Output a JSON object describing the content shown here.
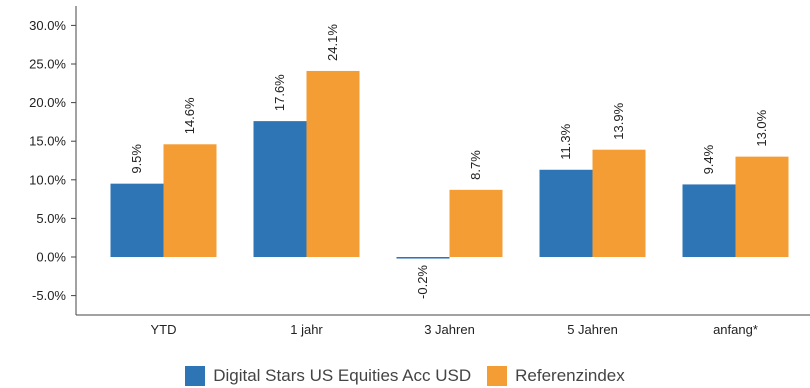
{
  "chart_data": {
    "type": "bar",
    "categories": [
      "YTD",
      "1 jahr",
      "3 Jahren",
      "5 Jahren",
      "anfang*"
    ],
    "series": [
      {
        "name": "Digital Stars US Equities Acc USD",
        "values": [
          9.5,
          17.6,
          -0.2,
          11.3,
          9.4
        ],
        "labels": [
          "9.5%",
          "17.6%",
          "-0.2%",
          "11.3%",
          "9.4%"
        ],
        "color": "#2e75b6"
      },
      {
        "name": "Referenzindex",
        "values": [
          14.6,
          24.1,
          8.7,
          13.9,
          13.0
        ],
        "labels": [
          "14.6%",
          "24.1%",
          "8.7%",
          "13.9%",
          "13.0%"
        ],
        "color": "#f59d35"
      }
    ],
    "yticks": [
      "30.0%",
      "25.0%",
      "20.0%",
      "15.0%",
      "10.0%",
      "5.0%",
      "0.0%",
      "-5.0%"
    ],
    "ylim": [
      -7.5,
      32
    ],
    "title": "",
    "xlabel": "",
    "ylabel": "",
    "grid": false,
    "legend_position": "bottom"
  }
}
